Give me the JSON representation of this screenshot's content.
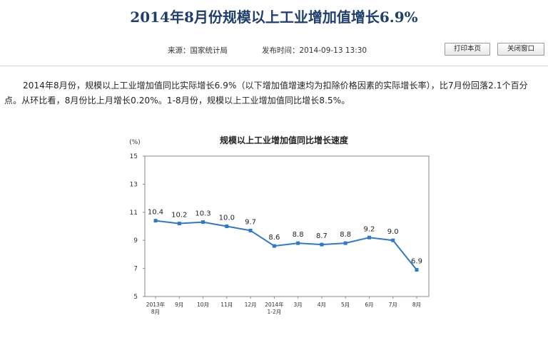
{
  "page": {
    "title": "2014年8月份规模以上工业增加值增长6.9%",
    "source": "来源：国家统计局",
    "publish_time": "发布时间：2014-09-13 13:30",
    "print_button": "打印本页",
    "close_button": "关闭窗口",
    "body_text": "2014年8月份，规模以上工业增加值同比实际增长6.9%（以下增加值增速均为扣除价格因素的实际增长率），比7月份回落2.1个百分点。从环比看，8月份比上月增长0.20%。1-8月份，规模以上工业增加值同比增长8.5%。"
  },
  "chart_data": {
    "type": "line",
    "title": "规模以上工业增加值同比增长速度",
    "ylabel": "(%)",
    "ylim": [
      5,
      15
    ],
    "yticks": [
      "15",
      "13",
      "11",
      "9",
      "7",
      "5"
    ],
    "categories": [
      [
        "2013年",
        "8月"
      ],
      [
        "9月"
      ],
      [
        "10月"
      ],
      [
        "11月"
      ],
      [
        "12月"
      ],
      [
        "2014年",
        "1-2月"
      ],
      [
        "3月"
      ],
      [
        "4月"
      ],
      [
        "5月"
      ],
      [
        "6月"
      ],
      [
        "7月"
      ],
      [
        "8月"
      ]
    ],
    "values": [
      10.4,
      10.2,
      10.3,
      10.0,
      9.7,
      8.6,
      8.8,
      8.7,
      8.8,
      9.2,
      9.0,
      6.9
    ],
    "labels": [
      "10.4",
      "10.2",
      "10.3",
      "10.0",
      "9.7",
      "8.6",
      "8.8",
      "8.7",
      "8.8",
      "9.2",
      "9.0",
      "6.9"
    ],
    "grid": false,
    "line_color": "#2f79c6",
    "marker_color": "#2f79c6"
  }
}
